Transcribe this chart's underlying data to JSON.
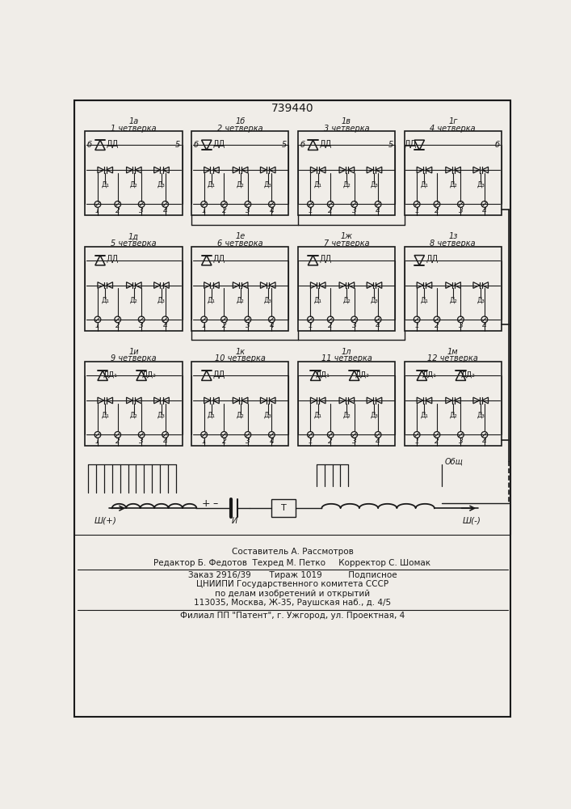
{
  "title": "739440",
  "bg_color": "#f0ede8",
  "line_color": "#1a1a1a",
  "row1": {
    "labels_top": [
      "1а",
      "1б",
      "1в",
      "1г"
    ],
    "labels_bot": [
      "1 четверка",
      "2 четверка",
      "3 четверка",
      "4 четверка"
    ],
    "dd_up": [
      true,
      false,
      true,
      false
    ],
    "left_num": [
      "б",
      "б",
      "б",
      ""
    ],
    "right_num": [
      "5",
      "5",
      "5",
      "б"
    ],
    "dd_label_pos": [
      "right",
      "right",
      "right",
      "left"
    ]
  },
  "row2": {
    "labels_top": [
      "1д",
      "1е",
      "1ж",
      "1з"
    ],
    "labels_bot": [
      "5 четверка",
      "6 четверка",
      "7 четверка",
      "8 четверка"
    ],
    "dd_up": [
      true,
      true,
      true,
      false
    ],
    "left_num": [
      "",
      "",
      "",
      ""
    ],
    "right_num": [
      "",
      "",
      "",
      ""
    ]
  },
  "row3": {
    "labels_top": [
      "1и",
      "1к",
      "1л",
      "1м"
    ],
    "labels_bot": [
      "9 четверка",
      "10 четверка",
      "11 четверка",
      "12 четверка"
    ],
    "dd_up": [
      true,
      true,
      true,
      true
    ],
    "two_dd": [
      true,
      false,
      true,
      true
    ]
  },
  "footer_lines": [
    "Составитель А. Рассмотров",
    "Редактор Б. Федотов  Техред М. Петко     Корректор С. Шомак",
    "Заказ 2916/39       Тираж 1019          Подписное",
    "ЦНИИПИ Государственного комитета СССР",
    "по делам изобретений и открытий",
    "113035, Москва, Ж-35, Раушская наб., д. 4/5",
    "Филиал ПП \"Патент\", г. Ужгород, ул. Проектная, 4"
  ]
}
